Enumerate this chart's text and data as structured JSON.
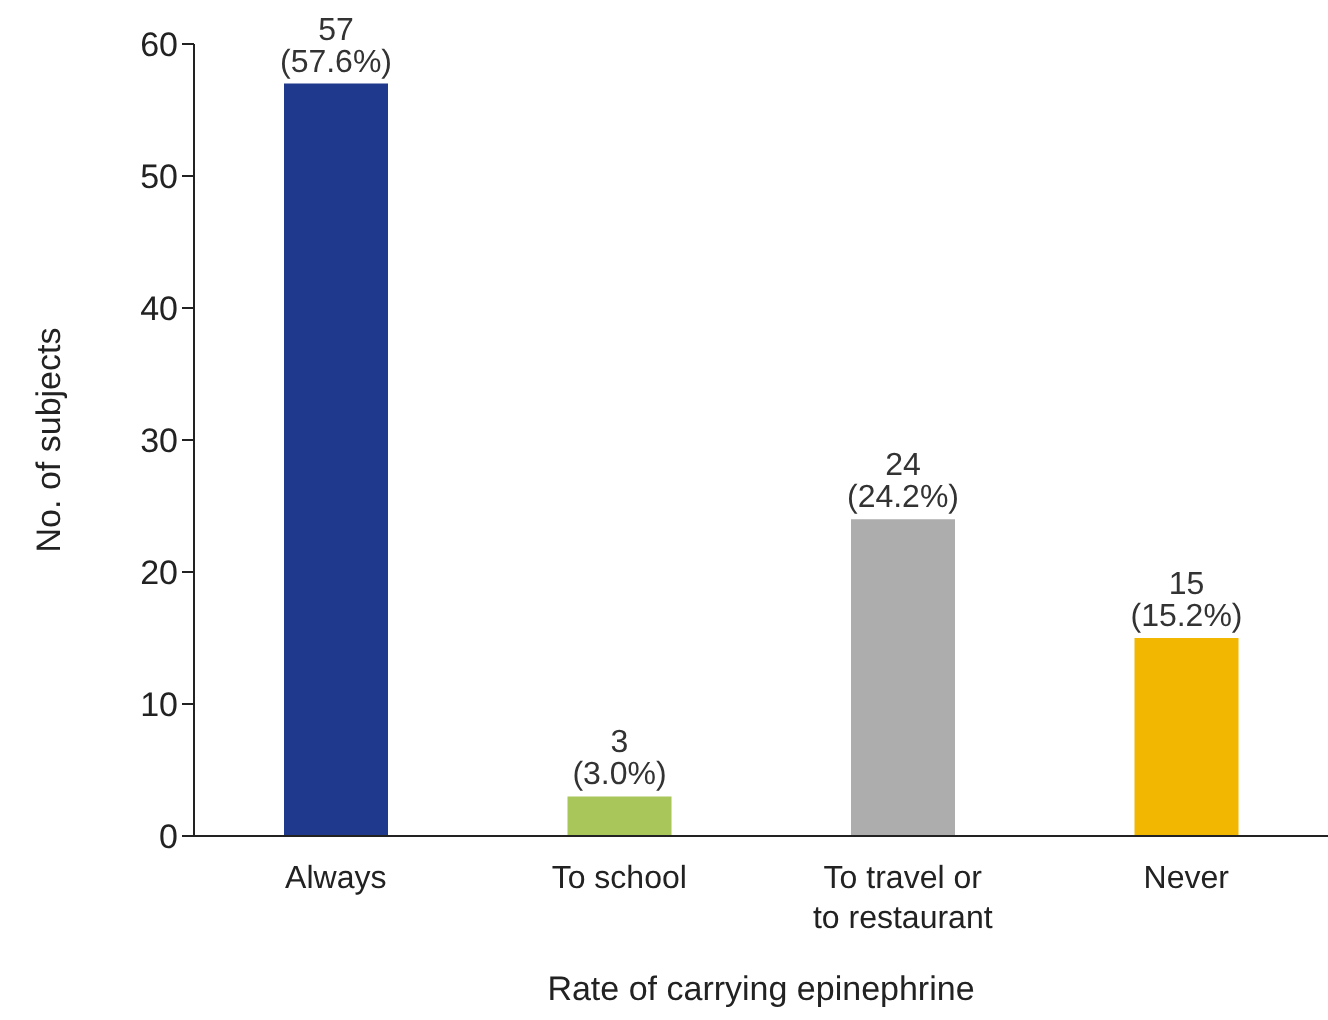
{
  "chart_data": {
    "type": "bar",
    "xlabel": "Rate of carrying epinephrine",
    "ylabel": "No. of subjects",
    "categories": [
      "Always",
      "To school",
      "To travel or to restaurant",
      "Never"
    ],
    "values": [
      57,
      3,
      24,
      15
    ],
    "colors": [
      "#1f3a8c",
      "#a8c65a",
      "#adadad",
      "#f2b700"
    ],
    "value_labels": [
      "57 (57.6%)",
      "3 (3.0%)",
      "24 (24.2%)",
      "15 (15.2%)"
    ],
    "ylim": [
      0,
      60
    ],
    "yticks": [
      0,
      10,
      20,
      30,
      40,
      50,
      60
    ],
    "grid": false,
    "legend": false
  }
}
